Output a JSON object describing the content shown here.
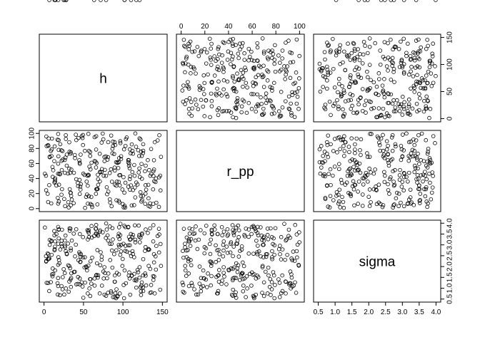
{
  "chart_data": {
    "type": "scatter",
    "subtype": "pairs-matrix",
    "variables": [
      {
        "name": "h",
        "ticks": [
          0,
          50,
          100,
          150
        ],
        "range": [
          0,
          150
        ]
      },
      {
        "name": "r_pp",
        "ticks": [
          0,
          20,
          40,
          60,
          80,
          100
        ],
        "range": [
          0,
          100
        ]
      },
      {
        "name": "sigma",
        "ticks": [
          0.5,
          1.0,
          1.5,
          2.0,
          2.5,
          3.0,
          3.5,
          4.0
        ],
        "range": [
          0.5,
          4.0
        ]
      }
    ],
    "n_points": 300,
    "marker": "open-circle",
    "grid": false,
    "h": [
      99.3,
      55.4,
      65.8,
      81.5,
      73.0,
      27.6,
      86.1,
      100.9,
      145.8,
      114.2,
      90.3,
      58.9,
      128.8,
      14.0,
      106.8,
      103.1,
      17.4,
      70.6,
      132.4,
      32.0,
      11.0,
      77.2,
      31.3,
      81.3,
      134.4,
      22.1,
      60.6,
      26.3,
      114.3,
      55.9,
      43.1,
      66.3,
      97.7,
      95.6,
      85.6,
      132.1,
      101.8,
      5.1,
      49.8,
      106.7,
      91.6,
      64.0,
      66.1,
      134.5,
      94.7,
      96.0,
      17.9,
      115.1,
      95.4,
      18.2,
      6.6,
      35.2,
      51.8,
      94.9,
      55.5,
      20.2,
      13.0,
      37.9,
      11.7,
      89.7,
      133.2,
      99.7,
      67.9,
      57.5,
      8.6,
      89.8,
      67.1,
      26.4,
      9.7,
      55.0,
      68.2,
      91.3,
      10.7,
      45.9,
      4.6,
      128.7,
      83.4,
      147.6,
      33.1,
      135.7,
      102.8,
      13.5,
      23.7,
      45.3,
      141.3,
      10.1,
      120.0,
      33.9,
      89.5,
      128.2,
      53.3,
      34.4,
      13.9,
      45.1,
      40.8,
      34.1,
      147.2,
      17.9,
      32.0,
      78.3,
      91.8,
      13.2,
      22.5,
      122.3,
      146.1,
      39.3,
      33.5,
      129.4,
      124.1,
      111.9,
      108.7,
      22.0,
      71.3,
      66.6,
      100.7,
      132.6,
      102.1,
      123.9,
      115.6,
      56.9,
      110.1,
      7.2,
      33.5,
      5.9,
      127.9,
      121.0,
      28.8,
      68.5,
      39.0,
      32.3,
      40.9,
      20.6,
      122.8,
      65.4,
      44.7,
      48.8,
      134.6,
      118.5,
      61.0,
      107.4,
      138.2,
      107.6,
      54.5,
      116.6,
      58.5,
      141.8,
      108.0,
      5.5,
      109.2,
      70.8,
      56.7,
      45.4,
      111.2,
      112.1,
      65.9,
      101.4,
      145.6,
      14.1,
      73.1,
      2.9,
      18.6,
      71.0,
      5.2,
      125.7,
      125.5,
      59.9,
      75.6,
      96.6,
      138.6,
      23.5,
      144.0,
      1.1,
      17.9,
      18.5,
      54.0,
      86.7,
      60.2,
      120.6,
      121.4,
      33.9,
      43.6,
      108.5,
      19.0,
      140.3,
      109.8,
      97.6,
      128.6,
      79.9,
      15.7,
      112.7,
      76.5,
      76.6,
      30.4,
      89.5,
      27.2,
      123.4,
      122.9,
      58.4,
      75.2,
      46.2,
      138.4,
      18.8,
      95.1,
      45.2,
      46.7,
      103.8,
      9.4,
      87.2,
      87.5,
      34.6,
      96.6,
      68.6,
      7.2,
      2.7,
      112.7,
      96.8,
      80.5,
      67.6,
      139.3,
      73.4,
      120.8,
      78.6,
      47.8,
      92.3,
      3.3,
      148.2,
      84.8,
      104.8,
      46.4,
      37.6,
      108.7,
      138.6,
      25.6,
      27.7,
      83.8,
      64.1,
      81.1,
      32.6,
      52.0,
      49.4,
      111.1,
      74.4,
      2.5,
      83.3,
      17.8,
      26.7,
      139.6,
      40.3,
      114.8,
      58.9,
      119.3,
      124.3,
      22.3,
      94.7,
      93.0,
      125.4,
      125.7,
      123.5,
      108.9,
      49.4,
      51.3,
      56.2,
      19.5,
      79.5,
      106.8,
      122.2,
      88.9,
      9.2,
      116.9,
      42.8,
      142.3,
      56.8,
      86.6,
      17.1,
      66.0,
      131.5,
      93.2,
      28.9,
      139.4,
      115.7,
      22.8,
      103.2,
      136.0,
      94.1,
      85.1,
      30.7,
      116.9,
      24.9,
      6.7,
      78.7,
      71.8,
      18.0,
      13.3,
      110.3,
      121.1,
      26.3,
      63.5,
      28.1,
      14.4,
      102.0
    ],
    "r_pp": [
      25.4,
      30.4,
      19.7,
      22.6,
      87.8,
      97.6,
      35.8,
      1.7,
      41.6,
      4.6,
      84.5,
      6.1,
      57.1,
      36.0,
      64.6,
      34.4,
      14.3,
      73.0,
      13.7,
      88.2,
      42.2,
      51.5,
      1.6,
      88.4,
      7.0,
      18.5,
      4.7,
      64.7,
      58.0,
      45.0,
      29.8,
      25.9,
      69.6,
      8.3,
      3.2,
      31.6,
      21.2,
      84.4,
      46.5,
      61.5,
      30.4,
      63.2,
      96.3,
      2.6,
      10.4,
      30.9,
      99.2,
      28.1,
      44.4,
      69.5,
      31.3,
      12.0,
      76.8,
      61.8,
      6.6,
      45.6,
      63.1,
      47.6,
      51.0,
      50.6,
      51.2,
      6.1,
      26.1,
      55.8,
      76.6,
      31.9,
      25.7,
      47.6,
      78.7,
      43.7,
      45.0,
      61.7,
      55.4,
      29.3,
      19.7,
      31.2,
      12.3,
      24.2,
      47.5,
      79.2,
      1.4,
      82.7,
      65.2,
      19.4,
      35.4,
      93.1,
      48.1,
      4.4,
      54.6,
      6.4,
      15.6,
      16.8,
      38.4,
      38.2,
      39.1,
      74.8,
      43.8,
      6.6,
      53.1,
      69.5,
      11.1,
      34.7,
      51.3,
      92.0,
      97.6,
      67.2,
      73.0,
      25.1,
      39.7,
      48.6,
      39.2,
      77.5,
      48.2,
      60.6,
      41.8,
      3.4,
      3.7,
      70.0,
      14.9,
      76.7,
      30.9,
      68.3,
      20.9,
      93.2,
      49.7,
      93.4,
      57.1,
      39.1,
      71.3,
      75.6,
      91.1,
      85.6,
      16.7,
      62.5,
      64.3,
      93.8,
      43.7,
      32.1,
      2.0,
      64.3,
      25.6,
      57.0,
      18.7,
      82.2,
      70.0,
      40.1,
      59.8,
      83.5,
      42.9,
      36.1,
      44.3,
      59.4,
      85.4,
      76.8,
      54.7,
      78.8,
      2.3,
      40.3,
      48.7,
      95.9,
      78.1,
      48.9,
      8.8,
      76.9,
      73.8,
      15.5,
      43.7,
      44.6,
      43.4,
      76.6,
      90.7,
      46.4,
      59.7,
      91.0,
      35.9,
      79.6,
      61.0,
      70.0,
      42.1,
      21.0,
      93.9,
      53.5,
      31.8,
      88.3,
      73.5,
      65.8,
      19.8,
      19.1,
      30.7,
      24.6,
      68.7,
      63.1,
      46.7,
      88.4,
      67.9,
      9.4,
      75.6,
      75.2,
      92.2,
      25.3,
      6.3,
      9.4,
      67.1,
      61.1,
      32.4,
      92.3,
      69.9,
      89.0,
      83.3,
      51.9,
      89.6,
      31.6,
      69.0,
      24.4,
      73.0,
      87.1,
      65.1,
      5.6,
      64.3,
      52.6,
      53.4,
      43.6,
      96.2,
      35.9,
      83.2,
      68.8,
      52.3,
      94.6,
      71.8,
      7.2,
      78.8,
      49.6,
      12.8,
      92.6,
      8.0,
      95.0,
      68.4,
      25.8,
      1.0,
      97.9,
      4.3,
      99.7,
      43.7,
      47.3,
      46.4,
      3.3,
      36.4,
      98.3,
      43.6,
      52.1,
      77.7,
      11.4,
      63.5,
      35.5,
      61.6,
      17.0,
      85.6,
      59.3,
      25.1,
      84.5,
      44.8,
      99.4,
      46.5,
      28.4,
      29.2,
      21.8,
      72.6,
      6.9,
      34.7,
      34.1,
      7.8,
      16.4,
      73.6,
      91.6,
      78.5,
      64.5,
      60.8,
      71.8,
      52.0,
      99.9,
      25.8,
      83.4,
      46.1,
      53.9,
      97.1,
      8.5
    ],
    "sigma": [
      2.03,
      0.76,
      3.53,
      1.68,
      2.31,
      2.71,
      2.74,
      1.15,
      2.65,
      2.43,
      0.77,
      2.24,
      3.71,
      3.16,
      3.83,
      3.82,
      0.71,
      0.76,
      2.81,
      1.31,
      1.91,
      1.7,
      0.84,
      3.2,
      3.76,
      1.1,
      3.34,
      2.96,
      1.66,
      3.62,
      1.52,
      3.51,
      3.0,
      3.27,
      3.05,
      2.77,
      3.88,
      2.33,
      0.56,
      3.81,
      2.75,
      1.45,
      3.92,
      0.79,
      3.51,
      0.76,
      2.08,
      3.9,
      2.92,
      2.43,
      0.87,
      3.2,
      2.43,
      1.64,
      3.25,
      0.68,
      3.64,
      1.75,
      1.66,
      1.59,
      2.78,
      2.35,
      3.48,
      0.99,
      1.28,
      1.3,
      2.15,
      3.2,
      2.54,
      3.68,
      1.49,
      0.54,
      1.55,
      2.21,
      2.61,
      1.58,
      3.85,
      3.04,
      1.92,
      1.15,
      2.72,
      2.8,
      1.51,
      1.45,
      2.47,
      1.64,
      3.89,
      2.74,
      0.59,
      1.68,
      2.0,
      1.47,
      2.92,
      1.18,
      3.72,
      1.06,
      0.93,
      1.1,
      2.02,
      3.32,
      0.95,
      3.44,
      2.93,
      3.33,
      3.48,
      2.47,
      3.75,
      1.13,
      3.48,
      3.36,
      2.63,
      3.04,
      2.06,
      1.62,
      3.05,
      2.03,
      1.82,
      1.27,
      3.24,
      3.36,
      3.5,
      3.23,
      1.4,
      2.37,
      2.72,
      1.49,
      2.6,
      3.42,
      1.76,
      3.76,
      1.18,
      2.79,
      0.86,
      3.74,
      2.66,
      1.08,
      1.89,
      1.84,
      2.41,
      1.58,
      1.56,
      3.37,
      1.82,
      1.41,
      0.64,
      1.86,
      1.73,
      2.57,
      0.7,
      3.61,
      3.55,
      3.5,
      1.59,
      2.71,
      3.75,
      0.54,
      3.74,
      1.82,
      2.46,
      2.26,
      3.3,
      3.67,
      1.24,
      2.34,
      1.59,
      1.21,
      1.45,
      3.45,
      3.91,
      0.95,
      3.41,
      3.8,
      3.83,
      3.7,
      1.97,
      3.77,
      3.87,
      3.38,
      3.12,
      2.84,
      2.29,
      1.45,
      2.3,
      0.76,
      3.26,
      2.7,
      2.9,
      1.46,
      3.5,
      2.58,
      1.97,
      0.7,
      3.06,
      1.3,
      3.43,
      1.12,
      0.69,
      1.42,
      1.77,
      2.22,
      3.16,
      3.72,
      3.81,
      2.59,
      2.57,
      1.23,
      3.19,
      3.25,
      0.59,
      1.69,
      2.54,
      1.6,
      3.0,
      2.23,
      3.46,
      3.97,
      3.44,
      2.76,
      2.57,
      1.12,
      3.46,
      0.65,
      1.27,
      1.71,
      1.25,
      2.03,
      0.86,
      2.69,
      2.45,
      3.52,
      2.98,
      1.38,
      0.71,
      0.99,
      2.3,
      1.12,
      0.79,
      3.65,
      1.26,
      2.42,
      1.57,
      3.58,
      2.48,
      3.05,
      1.47,
      2.89,
      1.54,
      3.01,
      1.37,
      1.42,
      1.74,
      3.53,
      3.19,
      3.0,
      0.61,
      1.04,
      0.87,
      1.12,
      3.24,
      3.36,
      1.96,
      2.04,
      2.15,
      3.71,
      2.98,
      1.05,
      2.57,
      3.16,
      1.35,
      1.2,
      2.95,
      3.68,
      1.95,
      1.23,
      1.59,
      3.55,
      0.64,
      2.57,
      2.19,
      3.12,
      3.7,
      2.96,
      0.81,
      3.39,
      0.79,
      2.06,
      1.03,
      1.88,
      2.37,
      3.99,
      2.66,
      3.05,
      2.75,
      2.48,
      1.97,
      1.7,
      3.41
    ]
  }
}
